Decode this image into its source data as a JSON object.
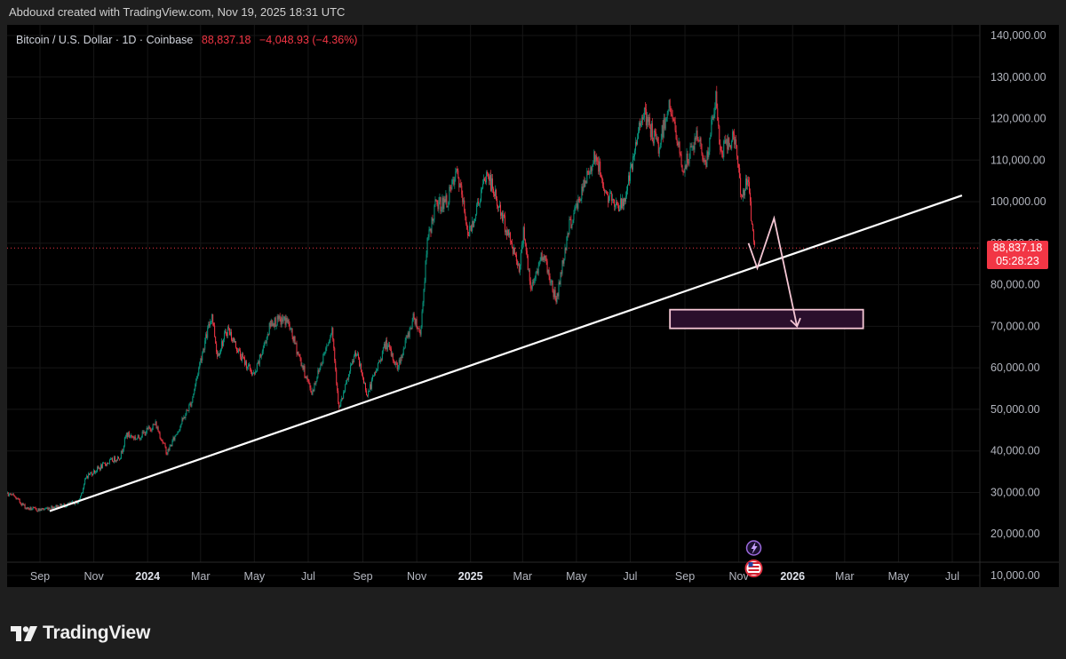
{
  "header": {
    "caption": "Abdouxd created with TradingView.com, Nov 19, 2025 18:31 UTC"
  },
  "legend": {
    "symbol": "Bitcoin / U.S. Dollar · 1D · Coinbase",
    "price": "88,837.18",
    "change": "−4,048.93 (−4.36%)"
  },
  "price_label": {
    "price": "88,837.18",
    "countdown": "05:28:23"
  },
  "brand": {
    "name": "TradingView"
  },
  "colors": {
    "up": "#089981",
    "down": "#f23645",
    "background": "#000000",
    "trendline": "#ffffff",
    "projection": "#f5c6d4",
    "box_fill": "#2a0f2c",
    "box_stroke": "#f5c6d4"
  },
  "chart_data": {
    "type": "line",
    "title": "Bitcoin / U.S. Dollar · 1D · Coinbase",
    "xlabel": "",
    "ylabel": "",
    "ylim": [
      10000,
      140000
    ],
    "y_ticks": [
      "140,000.00",
      "130,000.00",
      "120,000.00",
      "110,000.00",
      "100,000.00",
      "90,000.00",
      "80,000.00",
      "70,000.00",
      "60,000.00",
      "50,000.00",
      "40,000.00",
      "30,000.00",
      "20,000.00",
      "10,000.00"
    ],
    "x_ticks": [
      {
        "label": "Sep",
        "date": "2023-09-01",
        "bold": false
      },
      {
        "label": "Nov",
        "date": "2023-11-01",
        "bold": false
      },
      {
        "label": "2024",
        "date": "2024-01-01",
        "bold": true
      },
      {
        "label": "Mar",
        "date": "2024-03-01",
        "bold": false
      },
      {
        "label": "May",
        "date": "2024-05-01",
        "bold": false
      },
      {
        "label": "Jul",
        "date": "2024-07-01",
        "bold": false
      },
      {
        "label": "Sep",
        "date": "2024-09-01",
        "bold": false
      },
      {
        "label": "Nov",
        "date": "2024-11-01",
        "bold": false
      },
      {
        "label": "2025",
        "date": "2025-01-01",
        "bold": true
      },
      {
        "label": "Mar",
        "date": "2025-03-01",
        "bold": false
      },
      {
        "label": "May",
        "date": "2025-05-01",
        "bold": false
      },
      {
        "label": "Jul",
        "date": "2025-07-01",
        "bold": false
      },
      {
        "label": "Sep",
        "date": "2025-09-01",
        "bold": false
      },
      {
        "label": "Nov",
        "date": "2025-11-01",
        "bold": false
      },
      {
        "label": "2026",
        "date": "2026-01-01",
        "bold": true
      },
      {
        "label": "Mar",
        "date": "2026-03-01",
        "bold": false
      },
      {
        "label": "May",
        "date": "2026-05-01",
        "bold": false
      },
      {
        "label": "Jul",
        "date": "2026-07-01",
        "bold": false
      }
    ],
    "series": [
      {
        "values": [
          [
            "2023-07-15",
            30200
          ],
          [
            "2023-08-01",
            29300
          ],
          [
            "2023-08-17",
            26200
          ],
          [
            "2023-09-01",
            25800
          ],
          [
            "2023-09-15",
            26500
          ],
          [
            "2023-10-01",
            27000
          ],
          [
            "2023-10-15",
            27800
          ],
          [
            "2023-10-24",
            34000
          ],
          [
            "2023-11-01",
            35000
          ],
          [
            "2023-11-15",
            37000
          ],
          [
            "2023-12-01",
            38700
          ],
          [
            "2023-12-08",
            44000
          ],
          [
            "2023-12-20",
            43000
          ],
          [
            "2024-01-10",
            46500
          ],
          [
            "2024-01-23",
            39500
          ],
          [
            "2024-02-10",
            47500
          ],
          [
            "2024-02-20",
            52000
          ],
          [
            "2024-03-01",
            62000
          ],
          [
            "2024-03-14",
            73000
          ],
          [
            "2024-03-20",
            63000
          ],
          [
            "2024-04-01",
            69500
          ],
          [
            "2024-04-15",
            63000
          ],
          [
            "2024-05-01",
            58000
          ],
          [
            "2024-05-20",
            71000
          ],
          [
            "2024-06-07",
            71500
          ],
          [
            "2024-06-25",
            60000
          ],
          [
            "2024-07-05",
            54000
          ],
          [
            "2024-07-28",
            69500
          ],
          [
            "2024-08-05",
            50000
          ],
          [
            "2024-08-24",
            64000
          ],
          [
            "2024-09-06",
            53500
          ],
          [
            "2024-09-27",
            66000
          ],
          [
            "2024-10-10",
            60000
          ],
          [
            "2024-10-29",
            72500
          ],
          [
            "2024-11-05",
            68000
          ],
          [
            "2024-11-13",
            90000
          ],
          [
            "2024-11-22",
            99000
          ],
          [
            "2024-12-05",
            100000
          ],
          [
            "2024-12-17",
            107000
          ],
          [
            "2024-12-30",
            92000
          ],
          [
            "2025-01-20",
            107000
          ],
          [
            "2025-02-03",
            98000
          ],
          [
            "2025-02-26",
            84000
          ],
          [
            "2025-03-02",
            94000
          ],
          [
            "2025-03-10",
            78500
          ],
          [
            "2025-03-24",
            88000
          ],
          [
            "2025-04-08",
            76000
          ],
          [
            "2025-04-22",
            93500
          ],
          [
            "2025-05-10",
            104000
          ],
          [
            "2025-05-22",
            111500
          ],
          [
            "2025-06-05",
            101000
          ],
          [
            "2025-06-22",
            99000
          ],
          [
            "2025-07-04",
            109000
          ],
          [
            "2025-07-14",
            122000
          ],
          [
            "2025-08-02",
            113000
          ],
          [
            "2025-08-14",
            124000
          ],
          [
            "2025-08-30",
            107500
          ],
          [
            "2025-09-15",
            116000
          ],
          [
            "2025-09-25",
            109000
          ],
          [
            "2025-10-06",
            125000
          ],
          [
            "2025-10-11",
            112000
          ],
          [
            "2025-10-27",
            115500
          ],
          [
            "2025-11-04",
            101500
          ],
          [
            "2025-11-11",
            105000
          ],
          [
            "2025-11-19",
            88837
          ]
        ]
      }
    ],
    "trendline": {
      "start": [
        "2023-09-12",
        25500
      ],
      "end": [
        "2026-07-12",
        101500
      ]
    },
    "projection_path": [
      [
        "2025-11-12",
        90000
      ],
      [
        "2025-11-22",
        84000
      ],
      [
        "2025-12-11",
        96000
      ],
      [
        "2026-01-06",
        70000
      ]
    ],
    "target_zone": {
      "from": "2025-08-15",
      "to": "2026-03-22",
      "y_low": 69500,
      "y_high": 74000
    },
    "current_price": 88837.18,
    "event_markers": [
      "lightning-icon",
      "us-flag-icon"
    ]
  }
}
